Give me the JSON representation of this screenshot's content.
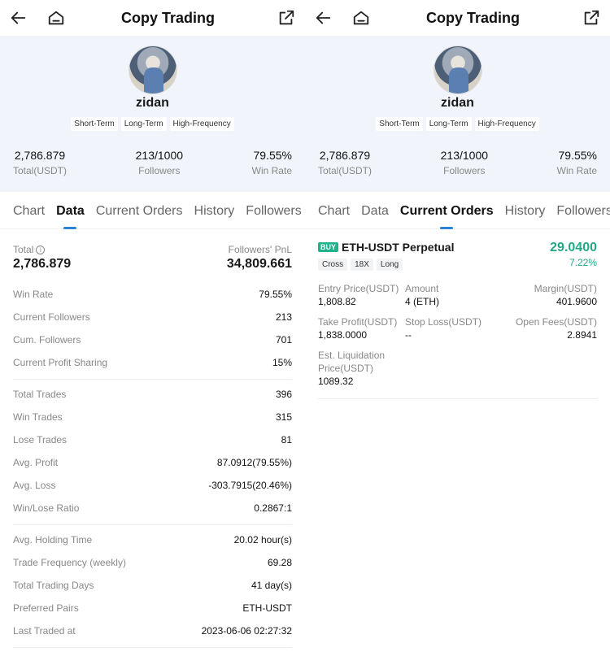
{
  "header": {
    "title": "Copy Trading"
  },
  "profile": {
    "name": "zidan",
    "tags": [
      "Short-Term",
      "Long-Term",
      "High-Frequency"
    ],
    "stats": [
      {
        "value": "2,786.879",
        "label": "Total(USDT)"
      },
      {
        "value": "213/1000",
        "label": "Followers"
      },
      {
        "value": "79.55%",
        "label": "Win Rate"
      }
    ]
  },
  "tabs": [
    "Chart",
    "Data",
    "Current Orders",
    "History",
    "Followers"
  ],
  "left": {
    "active_tab": "Data",
    "total_label": "Total",
    "total_value": "2,786.879",
    "followers_pnl_label": "Followers' PnL",
    "followers_pnl_value": "34,809.661",
    "groups": [
      [
        {
          "k": "Win Rate",
          "v": "79.55%"
        },
        {
          "k": "Current Followers",
          "v": "213"
        },
        {
          "k": "Cum. Followers",
          "v": "701"
        },
        {
          "k": "Current Profit Sharing",
          "v": "15%"
        }
      ],
      [
        {
          "k": "Total Trades",
          "v": "396"
        },
        {
          "k": "Win Trades",
          "v": "315"
        },
        {
          "k": "Lose Trades",
          "v": "81"
        },
        {
          "k": "Avg. Profit",
          "v": "87.0912(79.55%)"
        },
        {
          "k": "Avg. Loss",
          "v": "-303.7915(20.46%)"
        },
        {
          "k": "Win/Lose Ratio",
          "v": "0.2867:1"
        }
      ],
      [
        {
          "k": "Avg. Holding Time",
          "v": "20.02 hour(s)"
        },
        {
          "k": "Trade Frequency (weekly)",
          "v": "69.28"
        },
        {
          "k": "Total Trading Days",
          "v": "41 day(s)"
        },
        {
          "k": "Preferred Pairs",
          "v": "ETH-USDT"
        },
        {
          "k": "Last Traded at",
          "v": "2023-06-06 02:27:32"
        }
      ]
    ]
  },
  "right": {
    "active_tab": "Current Orders",
    "order": {
      "side": "BUY",
      "pair": "ETH-USDT Perpetual",
      "chips": [
        "Cross",
        "18X",
        "Long"
      ],
      "pnl": "29.0400",
      "pnl_pct": "7.22%",
      "entry_price_label": "Entry Price(USDT)",
      "entry_price": "1,808.82",
      "amount_label": "Amount",
      "amount": "4 (ETH)",
      "margin_label": "Margin(USDT)",
      "margin": "401.9600",
      "take_profit_label": "Take Profit(USDT)",
      "take_profit": "1,838.0000",
      "stop_loss_label": "Stop Loss(USDT)",
      "stop_loss": "--",
      "open_fees_label": "Open Fees(USDT)",
      "open_fees": "2.8941",
      "liq_label": "Est. Liquidation Price(USDT)",
      "liq_price": "1089.32"
    }
  },
  "icons": {
    "back": "back-arrow-icon",
    "home": "home-icon",
    "share": "share-icon",
    "info": "info-icon"
  },
  "colors": {
    "accent": "#2b83d8",
    "profit": "#22a887",
    "buy": "#22b28a",
    "profile_bg": "#f1f5fb"
  }
}
